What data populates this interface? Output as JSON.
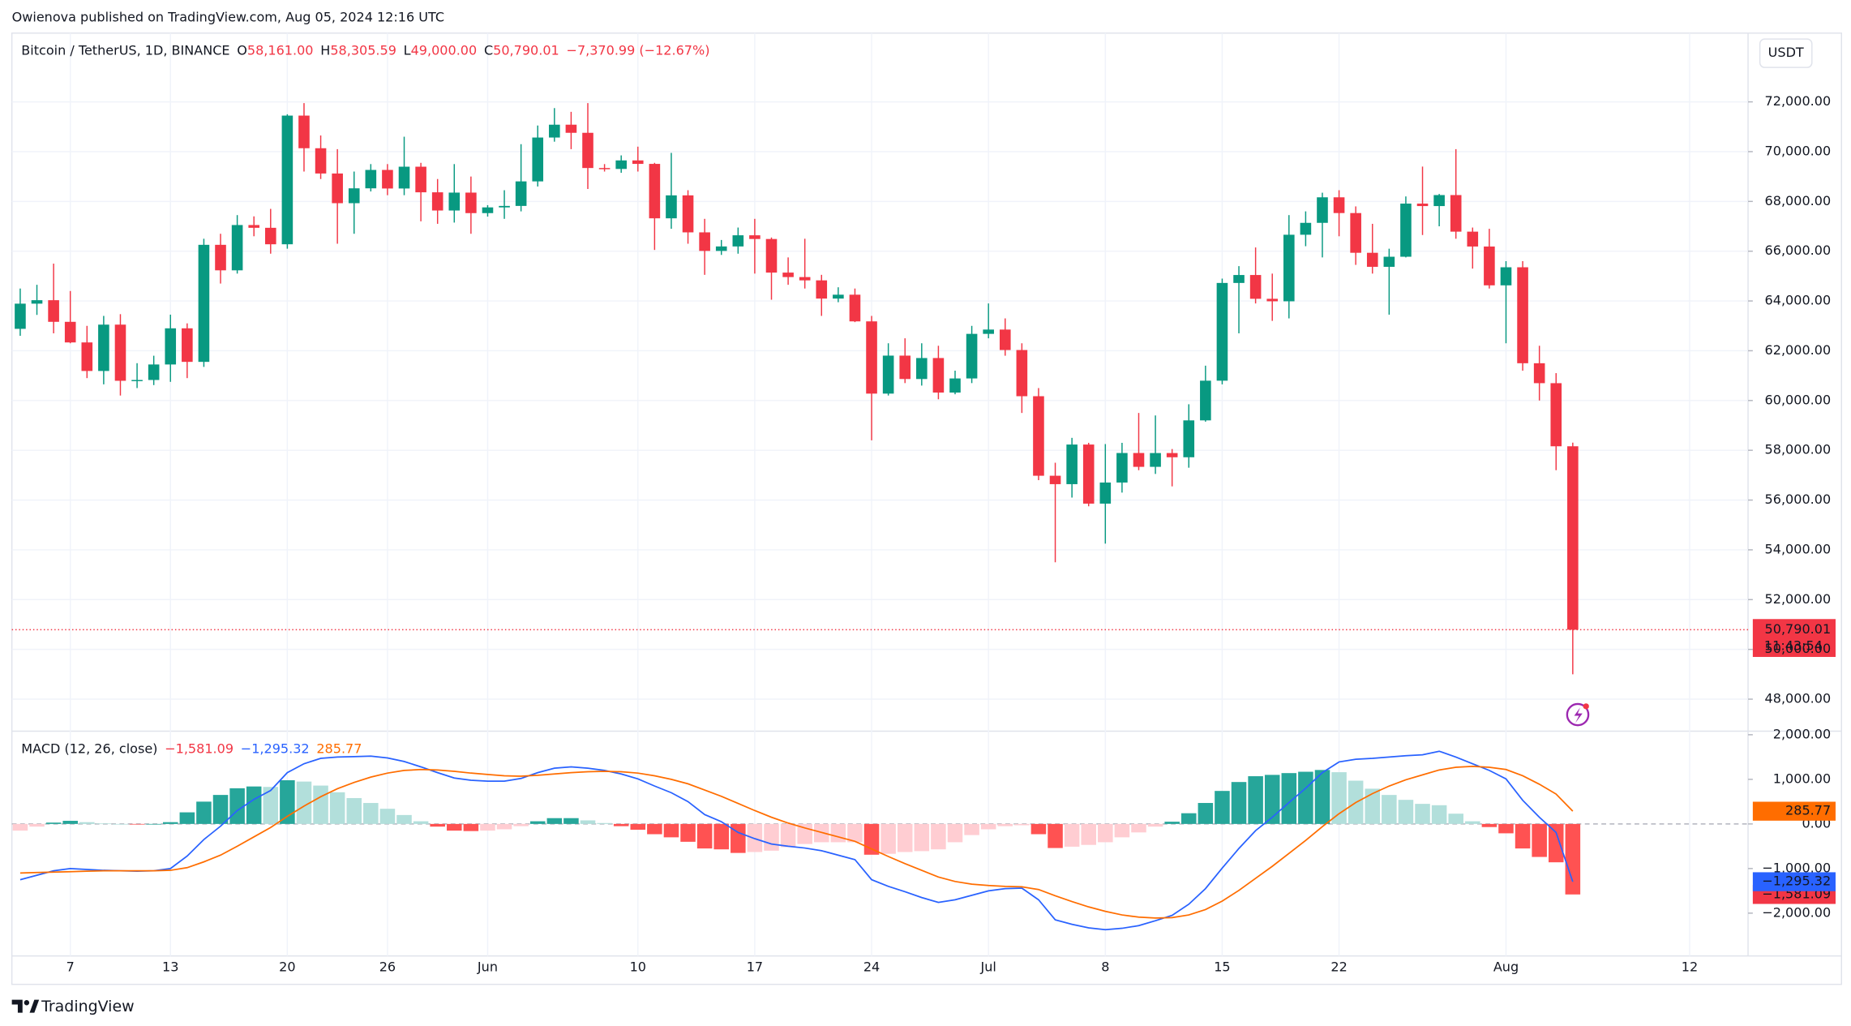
{
  "header": {
    "published": "Owienova published on TradingView.com, Aug 05, 2024 12:16 UTC"
  },
  "footer": {
    "brand": "TradingView"
  },
  "chart_data": [
    {
      "type": "candlestick",
      "title": "Bitcoin / TetherUS, 1D, BINANCE",
      "ohlc_legend": [
        {
          "key": "O",
          "text": "58,161.00"
        },
        {
          "key": "H",
          "text": "58,305.59"
        },
        {
          "key": "L",
          "text": "49,000.00"
        },
        {
          "key": "C",
          "text": "50,790.01"
        }
      ],
      "change": "−7,370.99 (−12.67%)",
      "currency": "USDT",
      "up_color": "#089981",
      "down_color": "#f23645",
      "open": [
        62880,
        63892,
        64031,
        63162,
        62334,
        61187,
        63049,
        60793,
        60825,
        61448,
        62901,
        61553,
        66256,
        65231,
        67051,
        66940,
        66278,
        71448,
        70137,
        69122,
        67929,
        68526,
        69265,
        68519,
        69395,
        68366,
        67635,
        68354,
        67530,
        67760,
        67819,
        68805,
        70567,
        71083,
        70757,
        69342,
        69305,
        69648,
        69508,
        67321,
        68243,
        66757,
        66011,
        66191,
        66639,
        66490,
        65140,
        64960,
        64828,
        64096,
        64252,
        63180,
        60277,
        61804,
        60864,
        61707,
        60320,
        60887,
        62678,
        62851,
        62029,
        60173,
        56977,
        56639,
        58231,
        55857,
        56705,
        57891,
        57335,
        57889,
        57720,
        59202,
        60797,
        64724,
        65043,
        64087,
        63987,
        66661,
        67139,
        68165,
        67532,
        65936,
        65372,
        65777,
        67912,
        67813,
        68255,
        66785,
        66188,
        64628,
        65354,
        61498,
        60697,
        58161,
        null,
        null,
        null,
        null,
        null,
        null,
        null,
        null,
        null,
        null
      ],
      "high": [
        64500,
        64650,
        65500,
        64400,
        63000,
        63400,
        63470,
        61500,
        61800,
        63450,
        63100,
        66500,
        66700,
        67450,
        67400,
        67700,
        71500,
        71950,
        70650,
        70100,
        69200,
        69500,
        69500,
        70600,
        69550,
        68900,
        69500,
        69000,
        67850,
        68450,
        70300,
        71050,
        71750,
        71600,
        71950,
        69500,
        69850,
        70200,
        69550,
        69950,
        68450,
        67300,
        66450,
        66950,
        67300,
        66550,
        65750,
        66500,
        65050,
        64550,
        64500,
        63400,
        62300,
        62500,
        62300,
        62200,
        61200,
        63000,
        63900,
        63300,
        62300,
        60500,
        57500,
        58500,
        58300,
        58250,
        58300,
        59500,
        59400,
        58050,
        59850,
        61400,
        64900,
        65400,
        66150,
        65100,
        67450,
        67600,
        68350,
        68450,
        67800,
        67100,
        66100,
        68200,
        69400,
        68300,
        70100,
        66950,
        66900,
        65600,
        65600,
        62200,
        61100,
        58305.59,
        null,
        null,
        null,
        null,
        null,
        null,
        null,
        null,
        null,
        null
      ],
      "low": [
        62600,
        63440,
        62700,
        62300,
        60900,
        60650,
        60200,
        60500,
        60620,
        60750,
        60900,
        61350,
        64700,
        65100,
        66600,
        65900,
        66100,
        69200,
        68900,
        66300,
        66700,
        68400,
        68250,
        68250,
        67200,
        67100,
        67150,
        66700,
        67390,
        67300,
        67600,
        68600,
        70400,
        70100,
        68500,
        69200,
        69150,
        69200,
        66050,
        66900,
        66300,
        65050,
        65850,
        65900,
        65100,
        64050,
        64650,
        64500,
        63400,
        63950,
        63150,
        58400,
        60200,
        60700,
        60600,
        60050,
        60250,
        60700,
        62500,
        61800,
        59500,
        56800,
        53500,
        56100,
        55750,
        54250,
        56300,
        57200,
        57050,
        56550,
        57300,
        59150,
        60650,
        62700,
        63900,
        63200,
        63300,
        66200,
        65750,
        66600,
        65450,
        65100,
        63450,
        65750,
        66650,
        67000,
        66500,
        65300,
        64500,
        62300,
        61200,
        60000,
        57200,
        49000,
        null,
        null,
        null,
        null,
        null,
        null,
        null,
        null,
        null,
        null
      ],
      "close": [
        63892,
        64031,
        63162,
        62334,
        61187,
        63049,
        60793,
        60825,
        61448,
        62901,
        61553,
        66256,
        65231,
        67051,
        66940,
        66278,
        71448,
        70137,
        69122,
        67929,
        68526,
        69265,
        68519,
        69395,
        68366,
        67635,
        68354,
        67530,
        67760,
        67819,
        68805,
        70567,
        71083,
        70757,
        69342,
        69305,
        69648,
        69508,
        67321,
        68243,
        66757,
        66011,
        66191,
        66639,
        66490,
        65140,
        64960,
        64828,
        64096,
        64252,
        63180,
        60277,
        61804,
        60864,
        61707,
        60320,
        60887,
        62678,
        62851,
        62029,
        60173,
        56977,
        56639,
        58231,
        55857,
        56705,
        57891,
        57335,
        57889,
        57720,
        59202,
        60797,
        64724,
        65043,
        64087,
        63987,
        66661,
        67139,
        68165,
        67532,
        65936,
        65372,
        65777,
        67912,
        67813,
        68255,
        66785,
        66188,
        64628,
        65354,
        61498,
        60697,
        58161,
        50790.01,
        null,
        null,
        null,
        null,
        null,
        null,
        null,
        null,
        null,
        null
      ],
      "last_price": {
        "label": "50,790.01",
        "countdown": "11:43:54"
      },
      "ylim": [
        46714,
        74762
      ],
      "yticks": [
        {
          "value": 48000,
          "label": "48,000.00"
        },
        {
          "value": 50000,
          "label": "50,000.00"
        },
        {
          "value": 52000,
          "label": "52,000.00"
        },
        {
          "value": 54000,
          "label": "54,000.00"
        },
        {
          "value": 56000,
          "label": "56,000.00"
        },
        {
          "value": 58000,
          "label": "58,000.00"
        },
        {
          "value": 60000,
          "label": "60,000.00"
        },
        {
          "value": 62000,
          "label": "62,000.00"
        },
        {
          "value": 64000,
          "label": "64,000.00"
        },
        {
          "value": 66000,
          "label": "66,000.00"
        },
        {
          "value": 68000,
          "label": "68,000.00"
        },
        {
          "value": 70000,
          "label": "70,000.00"
        },
        {
          "value": 72000,
          "label": "72,000.00"
        }
      ],
      "grid": true
    },
    {
      "type": "macd",
      "title": "MACD (12, 26, close)",
      "categories": [
        null,
        null,
        null,
        "7",
        null,
        null,
        null,
        null,
        null,
        "13",
        null,
        null,
        null,
        null,
        null,
        null,
        "20",
        null,
        null,
        null,
        null,
        null,
        "26",
        null,
        null,
        null,
        null,
        null,
        "Jun",
        null,
        null,
        null,
        null,
        null,
        null,
        null,
        null,
        "10",
        null,
        null,
        null,
        null,
        null,
        null,
        "17",
        null,
        null,
        null,
        null,
        null,
        null,
        "24",
        null,
        null,
        null,
        null,
        null,
        null,
        "Jul",
        null,
        null,
        null,
        null,
        null,
        null,
        "8",
        null,
        null,
        null,
        null,
        null,
        null,
        "15",
        null,
        null,
        null,
        null,
        null,
        null,
        "22",
        null,
        null,
        null,
        null,
        null,
        null,
        null,
        null,
        null,
        "Aug",
        null,
        null,
        null,
        null,
        null,
        null,
        null,
        null,
        null,
        null,
        "12",
        null,
        null,
        null
      ],
      "series": [
        {
          "kind": "histogram",
          "colors": [
            "#26a69a",
            "#b2dfdb",
            "#ff5252",
            "#ffcdd2"
          ],
          "color": "#f23645",
          "last_label": "−1,581.09",
          "values": [
            -150,
            -60,
            30,
            70,
            40,
            10,
            0,
            -10,
            0,
            40,
            260,
            500,
            650,
            800,
            840,
            830,
            980,
            950,
            860,
            710,
            580,
            470,
            340,
            200,
            60,
            -60,
            -150,
            -160,
            -150,
            -120,
            -50,
            60,
            130,
            130,
            80,
            20,
            -50,
            -130,
            -230,
            -300,
            -400,
            -550,
            -570,
            -650,
            -630,
            -600,
            -520,
            -450,
            -410,
            -410,
            -410,
            -690,
            -670,
            -630,
            -610,
            -570,
            -410,
            -250,
            -120,
            -50,
            -30,
            -230,
            -540,
            -510,
            -470,
            -410,
            -300,
            -190,
            -60,
            50,
            240,
            470,
            740,
            940,
            1070,
            1100,
            1140,
            1170,
            1210,
            1160,
            970,
            790,
            650,
            540,
            450,
            420,
            230,
            60,
            -70,
            -210,
            -550,
            -740,
            -860,
            -1581.09,
            null,
            null,
            null,
            null,
            null,
            null,
            null,
            null,
            null,
            null
          ]
        },
        {
          "kind": "line",
          "color": "#2962ff",
          "last_label": "−1,295.32",
          "values": [
            -1250,
            -1150,
            -1050,
            -1000,
            -1020,
            -1040,
            -1050,
            -1060,
            -1050,
            -1000,
            -720,
            -350,
            -50,
            300,
            550,
            750,
            1150,
            1350,
            1470,
            1500,
            1510,
            1520,
            1480,
            1400,
            1280,
            1150,
            1030,
            980,
            960,
            960,
            1020,
            1150,
            1250,
            1280,
            1250,
            1200,
            1120,
            1010,
            850,
            700,
            500,
            210,
            50,
            -190,
            -330,
            -450,
            -500,
            -540,
            -600,
            -700,
            -800,
            -1250,
            -1400,
            -1520,
            -1650,
            -1760,
            -1700,
            -1600,
            -1500,
            -1450,
            -1440,
            -1700,
            -2150,
            -2250,
            -2330,
            -2370,
            -2340,
            -2280,
            -2170,
            -2050,
            -1800,
            -1450,
            -990,
            -550,
            -150,
            150,
            480,
            800,
            1150,
            1390,
            1450,
            1470,
            1500,
            1530,
            1550,
            1630,
            1500,
            1350,
            1200,
            1010,
            530,
            150,
            -190,
            -1295.32,
            null,
            null,
            null,
            null,
            null,
            null,
            null,
            null,
            null,
            null
          ]
        },
        {
          "kind": "line",
          "color": "#ff6d00",
          "last_label": "285.77",
          "values": [
            -1100,
            -1090,
            -1080,
            -1070,
            -1060,
            -1050,
            -1050,
            -1050,
            -1050,
            -1040,
            -980,
            -850,
            -700,
            -500,
            -290,
            -80,
            170,
            400,
            610,
            790,
            930,
            1050,
            1140,
            1200,
            1220,
            1210,
            1180,
            1140,
            1110,
            1080,
            1070,
            1090,
            1120,
            1150,
            1170,
            1180,
            1170,
            1140,
            1080,
            1000,
            900,
            760,
            620,
            460,
            300,
            150,
            20,
            -90,
            -190,
            -290,
            -390,
            -560,
            -730,
            -890,
            -1040,
            -1190,
            -1290,
            -1350,
            -1380,
            -1400,
            -1410,
            -1470,
            -1610,
            -1740,
            -1860,
            -1960,
            -2040,
            -2090,
            -2110,
            -2100,
            -2040,
            -1920,
            -1730,
            -1490,
            -1220,
            -950,
            -660,
            -370,
            -60,
            230,
            480,
            680,
            850,
            990,
            1100,
            1210,
            1270,
            1290,
            1270,
            1220,
            1080,
            890,
            670,
            285.77,
            null,
            null,
            null,
            null,
            null,
            null,
            null,
            null,
            null,
            null
          ]
        }
      ],
      "ylim": [
        -2960,
        2080
      ],
      "yticks": [
        {
          "value": -2000,
          "label": "−2,000.00"
        },
        {
          "value": -1000,
          "label": "−1,000.00"
        },
        {
          "value": 0,
          "label": "0.00"
        },
        {
          "value": 1000,
          "label": "1,000.00"
        },
        {
          "value": 2000,
          "label": "2,000.00"
        }
      ]
    }
  ]
}
